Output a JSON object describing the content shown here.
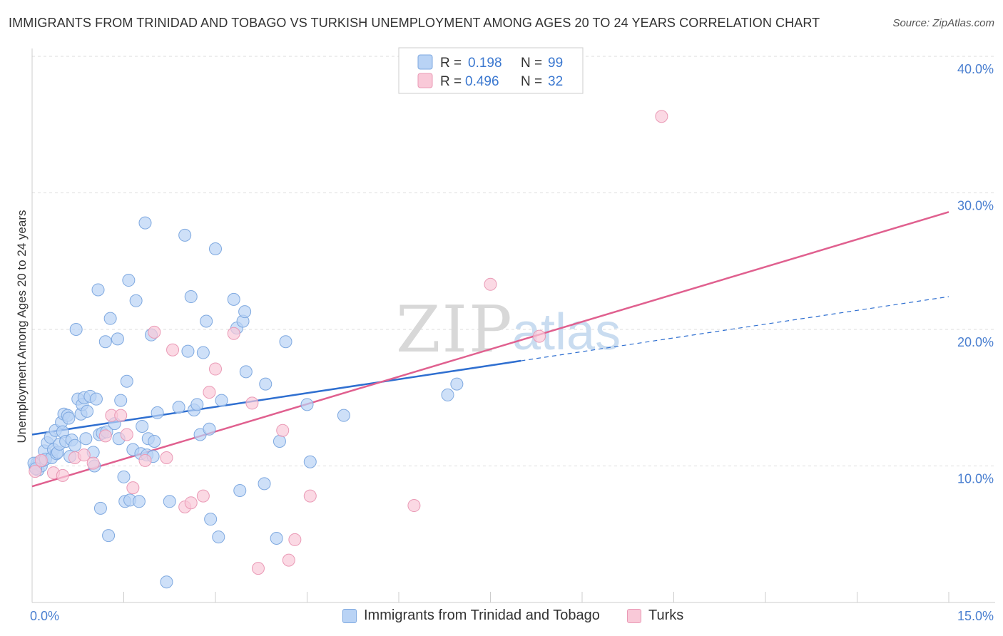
{
  "title": "IMMIGRANTS FROM TRINIDAD AND TOBAGO VS TURKISH UNEMPLOYMENT AMONG AGES 20 TO 24 YEARS CORRELATION CHART",
  "source": "Source: ZipAtlas.com",
  "watermark": {
    "zip": "ZIP",
    "atlas": "atlas"
  },
  "colors": {
    "blue": "#4a86d8",
    "blue_fill": "#b9d3f5",
    "pink": "#e76f9b",
    "pink_fill": "#f9c9d8",
    "axis_label": "#4a7fd0",
    "grid": "#dddddd"
  },
  "stats_legend": {
    "r_label": "R =",
    "n_label": "N =",
    "rows": [
      {
        "r": "0.198",
        "n": "99"
      },
      {
        "r": "0.496",
        "n": "32"
      }
    ]
  },
  "chart_data": {
    "type": "scatter",
    "title": "IMMIGRANTS FROM TRINIDAD AND TOBAGO VS TURKISH UNEMPLOYMENT AMONG AGES 20 TO 24 YEARS CORRELATION CHART",
    "xlabel": "",
    "ylabel": "Unemployment Among Ages 20 to 24 years",
    "xlim": [
      0,
      15
    ],
    "ylim": [
      0,
      40
    ],
    "x_tick_labels": [
      "0.0%",
      "15.0%"
    ],
    "y_tick_labels": [
      "10.0%",
      "20.0%",
      "30.0%",
      "40.0%"
    ],
    "y_ticks": [
      10,
      20,
      30,
      40
    ],
    "grid": true,
    "legend_position": "bottom",
    "series": [
      {
        "name": "Immigrants from Trinidad and Tobago",
        "color": "#4a86d8",
        "trend": {
          "x": [
            0,
            8
          ],
          "y": [
            12.3,
            17.7
          ],
          "dashed_to": [
            15,
            22.4
          ]
        },
        "points": [
          [
            0.05,
            9.9
          ],
          [
            0.08,
            10.2
          ],
          [
            0.1,
            9.7
          ],
          [
            0.12,
            10.3
          ],
          [
            0.15,
            10.0
          ],
          [
            0.18,
            10.4
          ],
          [
            0.2,
            11.1
          ],
          [
            0.22,
            10.5
          ],
          [
            0.25,
            11.7
          ],
          [
            0.3,
            12.1
          ],
          [
            0.32,
            10.6
          ],
          [
            0.35,
            11.2
          ],
          [
            0.38,
            12.6
          ],
          [
            0.4,
            10.9
          ],
          [
            0.42,
            11.0
          ],
          [
            0.45,
            11.6
          ],
          [
            0.48,
            13.2
          ],
          [
            0.5,
            12.5
          ],
          [
            0.52,
            13.8
          ],
          [
            0.55,
            11.8
          ],
          [
            0.58,
            13.7
          ],
          [
            0.6,
            13.5
          ],
          [
            0.62,
            10.7
          ],
          [
            0.65,
            11.9
          ],
          [
            0.7,
            11.5
          ],
          [
            0.72,
            20.0
          ],
          [
            0.75,
            14.9
          ],
          [
            0.8,
            13.8
          ],
          [
            0.82,
            14.5
          ],
          [
            0.85,
            15.0
          ],
          [
            0.88,
            12.0
          ],
          [
            0.9,
            14.0
          ],
          [
            0.95,
            15.1
          ],
          [
            1.0,
            11.0
          ],
          [
            1.02,
            10.0
          ],
          [
            1.05,
            14.9
          ],
          [
            1.08,
            22.9
          ],
          [
            1.1,
            12.3
          ],
          [
            1.12,
            6.9
          ],
          [
            1.15,
            12.4
          ],
          [
            1.2,
            19.1
          ],
          [
            1.22,
            12.5
          ],
          [
            1.25,
            4.9
          ],
          [
            1.28,
            20.8
          ],
          [
            1.35,
            13.1
          ],
          [
            1.4,
            19.3
          ],
          [
            1.42,
            12.0
          ],
          [
            1.45,
            14.8
          ],
          [
            1.5,
            9.2
          ],
          [
            1.52,
            7.4
          ],
          [
            1.55,
            16.2
          ],
          [
            1.58,
            23.6
          ],
          [
            1.6,
            7.5
          ],
          [
            1.65,
            11.2
          ],
          [
            1.7,
            22.1
          ],
          [
            1.75,
            7.4
          ],
          [
            1.78,
            10.9
          ],
          [
            1.8,
            12.9
          ],
          [
            1.85,
            27.8
          ],
          [
            1.88,
            10.8
          ],
          [
            1.9,
            12.0
          ],
          [
            1.95,
            19.6
          ],
          [
            1.98,
            10.7
          ],
          [
            2.0,
            11.8
          ],
          [
            2.05,
            13.9
          ],
          [
            2.2,
            1.5
          ],
          [
            2.25,
            7.4
          ],
          [
            2.4,
            14.3
          ],
          [
            2.5,
            26.9
          ],
          [
            2.55,
            18.4
          ],
          [
            2.6,
            22.4
          ],
          [
            2.65,
            14.1
          ],
          [
            2.7,
            14.5
          ],
          [
            2.75,
            12.3
          ],
          [
            2.8,
            18.3
          ],
          [
            2.85,
            20.6
          ],
          [
            2.9,
            12.7
          ],
          [
            2.92,
            6.1
          ],
          [
            3.0,
            25.9
          ],
          [
            3.05,
            4.8
          ],
          [
            3.1,
            14.8
          ],
          [
            3.3,
            22.2
          ],
          [
            3.35,
            20.1
          ],
          [
            3.4,
            8.2
          ],
          [
            3.45,
            20.6
          ],
          [
            3.48,
            21.3
          ],
          [
            3.5,
            16.9
          ],
          [
            3.8,
            8.7
          ],
          [
            3.82,
            16.0
          ],
          [
            4.0,
            4.7
          ],
          [
            4.05,
            11.8
          ],
          [
            4.15,
            19.1
          ],
          [
            4.5,
            14.5
          ],
          [
            4.55,
            10.3
          ],
          [
            5.1,
            13.7
          ],
          [
            6.8,
            15.2
          ],
          [
            6.95,
            16.0
          ],
          [
            0.03,
            10.2
          ],
          [
            0.06,
            9.8
          ]
        ]
      },
      {
        "name": "Turks",
        "color": "#e76f9b",
        "trend": {
          "x": [
            0,
            15
          ],
          "y": [
            8.5,
            28.6
          ]
        },
        "points": [
          [
            0.05,
            9.6
          ],
          [
            0.15,
            10.4
          ],
          [
            0.35,
            9.5
          ],
          [
            0.5,
            9.3
          ],
          [
            0.7,
            10.6
          ],
          [
            0.85,
            10.8
          ],
          [
            1.0,
            10.2
          ],
          [
            1.2,
            12.2
          ],
          [
            1.3,
            13.7
          ],
          [
            1.45,
            13.7
          ],
          [
            1.55,
            12.3
          ],
          [
            1.65,
            8.4
          ],
          [
            1.85,
            10.4
          ],
          [
            2.0,
            19.8
          ],
          [
            2.2,
            10.6
          ],
          [
            2.3,
            18.5
          ],
          [
            2.5,
            7.0
          ],
          [
            2.6,
            7.3
          ],
          [
            2.8,
            7.8
          ],
          [
            2.9,
            15.4
          ],
          [
            3.0,
            17.1
          ],
          [
            3.3,
            19.7
          ],
          [
            3.6,
            14.6
          ],
          [
            3.7,
            2.5
          ],
          [
            4.1,
            12.6
          ],
          [
            4.2,
            3.1
          ],
          [
            4.3,
            4.6
          ],
          [
            4.55,
            7.8
          ],
          [
            6.25,
            7.1
          ],
          [
            7.5,
            23.3
          ],
          [
            8.3,
            19.5
          ],
          [
            10.3,
            35.6
          ]
        ]
      }
    ]
  }
}
